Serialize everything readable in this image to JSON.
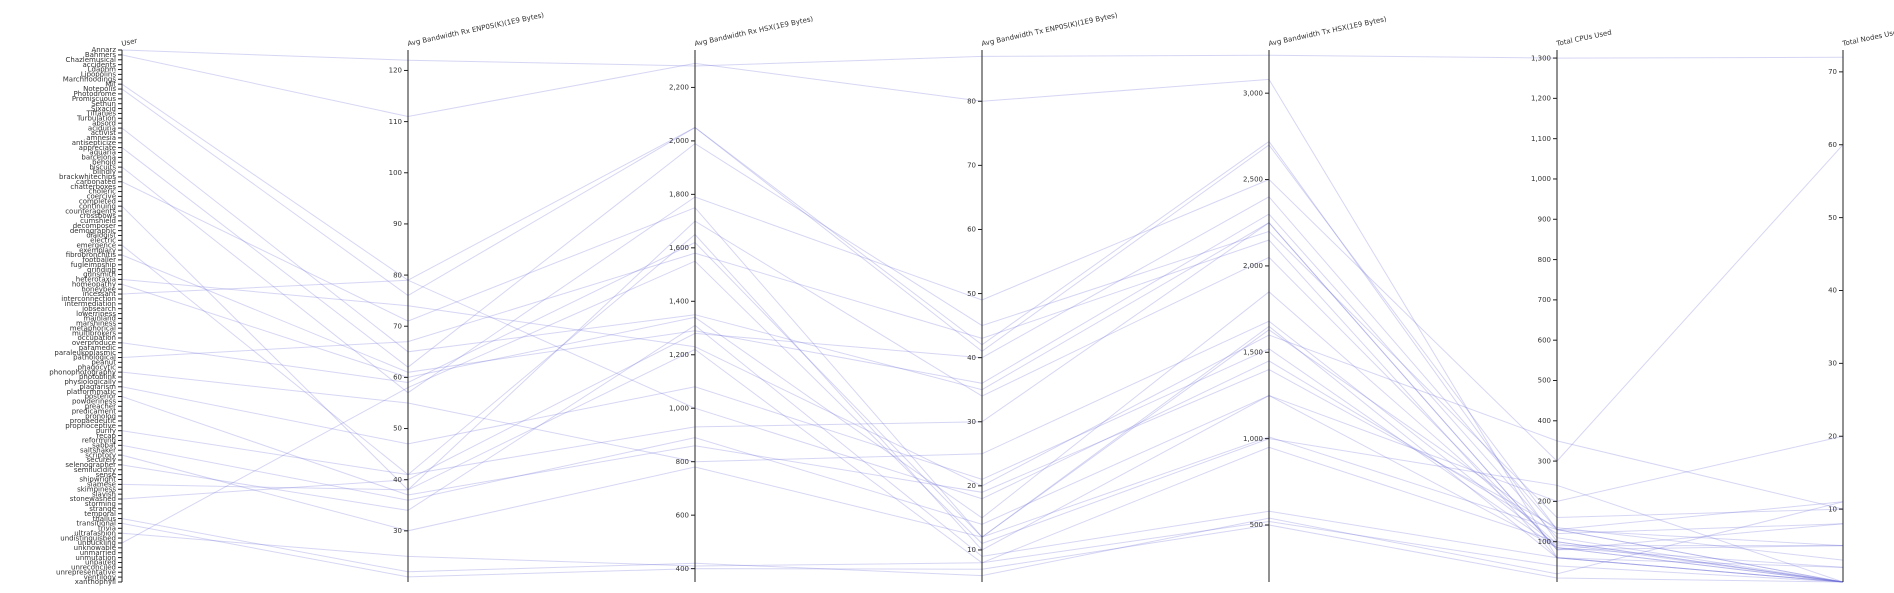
{
  "chart_data": {
    "type": "parallel-coordinates",
    "title": "",
    "line_color": "#6b6bd6",
    "dimensions": [
      {
        "name": "User",
        "type": "categorical",
        "categories": [
          "Annarz",
          "Bahmers",
          "Chazlemusical",
          "accidents",
          "Ldaphm",
          "Lipopolins",
          "Marchhoodings",
          "Mit",
          "Notepolis",
          "Photodrome",
          "Promiscuous",
          "Sethun",
          "Sixacid",
          "Tiffanies",
          "Turbulation",
          "absord",
          "aciduria",
          "activist",
          "amnesia",
          "antisepticize",
          "appreciate",
          "aquaria",
          "barcelona",
          "behold",
          "biscuits",
          "blindly",
          "brackwhitechips",
          "carbonated",
          "chatterboxes",
          "choleric",
          "coercive",
          "completed",
          "continuing",
          "counteragents",
          "crossbows",
          "cumshield",
          "decomposer",
          "demographic",
          "dialogist",
          "electric",
          "emergence",
          "exemplary",
          "fibrobronchitis",
          "footballer",
          "fugleimpship",
          "grinding",
          "gunsmith",
          "heterotaxia",
          "homeopathy",
          "honeybee",
          "incessant",
          "interconnection",
          "intermediation",
          "jobsearch",
          "lowerriness",
          "mainland",
          "marshiness",
          "metaphorical",
          "multibrokers",
          "occupation",
          "overproduce",
          "paramedic",
          "paraleukoplasmic",
          "pathological",
          "peanut",
          "phagocytic",
          "phonophotography",
          "photoblink",
          "physiologically",
          "plagiarism",
          "platformmatic",
          "posterior",
          "powderiness",
          "preacher",
          "predicament",
          "pronolog",
          "propaedeutic",
          "proprioceptive",
          "purify",
          "recap",
          "reforming",
          "sabbat",
          "saltshaker",
          "scriptory",
          "securely",
          "selenographer",
          "semilucidity",
          "sense",
          "shipwright",
          "siamese",
          "skimpiness",
          "slavish",
          "stonewashed",
          "storming",
          "strange",
          "temporal",
          "thallus",
          "transitional",
          "trivia",
          "ultrafashion",
          "undistinguished",
          "unbuckling",
          "unknowable",
          "unmarried",
          "unmutation",
          "unpaired",
          "unreconciled",
          "unrepresentative",
          "ventilogy",
          "xanthophyll"
        ]
      },
      {
        "name": "Avg Bandwidth Rx ENP0S(K)(1E9 Bytes)",
        "type": "numeric",
        "domain": [
          20,
          124
        ],
        "ticks": [
          30,
          40,
          50,
          60,
          70,
          80,
          90,
          100,
          110,
          120
        ]
      },
      {
        "name": "Avg Bandwidth Rx HSX(1E9 Bytes)",
        "type": "numeric",
        "domain": [
          350,
          2340
        ],
        "ticks": [
          400,
          600,
          800,
          1000,
          1200,
          1400,
          1600,
          1800,
          2000,
          2200
        ]
      },
      {
        "name": "Avg Bandwidth Tx ENP0S(K)(1E9 Bytes)",
        "type": "numeric",
        "domain": [
          5,
          88
        ],
        "ticks": [
          10,
          20,
          30,
          40,
          50,
          60,
          70,
          80
        ]
      },
      {
        "name": "Avg Bandwidth Tx HSX(1E9 Bytes)",
        "type": "numeric",
        "domain": [
          170,
          3250
        ],
        "ticks": [
          500,
          1000,
          1500,
          2000,
          2500,
          3000
        ]
      },
      {
        "name": "Total CPUs Used",
        "type": "numeric",
        "domain": [
          0,
          1320
        ],
        "ticks": [
          100,
          200,
          300,
          400,
          500,
          600,
          700,
          800,
          900,
          1000,
          1100,
          1200,
          1300
        ]
      },
      {
        "name": "Total Nodes Used",
        "type": "numeric",
        "domain": [
          0,
          73
        ],
        "ticks": [
          10,
          20,
          30,
          40,
          50,
          60,
          70
        ]
      }
    ],
    "records": [
      [
        "Annarz",
        122,
        2280,
        87,
        3220,
        1300,
        72
      ],
      [
        "Bahmers",
        111,
        2290,
        80,
        3080,
        60,
        2
      ],
      [
        "Notepolis",
        76,
        2050,
        41,
        2700,
        130,
        0
      ],
      [
        "Mit",
        79,
        2050,
        42,
        2720,
        100,
        0
      ],
      [
        "aciduria",
        65,
        1350,
        35,
        2250,
        80,
        5
      ],
      [
        "appreciate",
        62,
        1990,
        45,
        2200,
        160,
        10
      ],
      [
        "biscuits",
        57,
        1790,
        49,
        2500,
        300,
        60
      ],
      [
        "carbonated",
        71,
        1750,
        12,
        1630,
        130,
        5
      ],
      [
        "continuing",
        38,
        1700,
        34,
        2050,
        85,
        2
      ],
      [
        "emergence",
        41,
        1650,
        10,
        1250,
        200,
        20
      ],
      [
        "fibrobronchitis",
        61,
        1290,
        36,
        2300,
        110,
        0
      ],
      [
        "heterotaxia",
        74,
        1230,
        20,
        1600,
        350,
        10
      ],
      [
        "homeopathy",
        60,
        1340,
        15,
        1850,
        95,
        0
      ],
      [
        "incessant",
        79,
        1000,
        18,
        1450,
        120,
        8
      ],
      [
        "overproduce",
        59,
        1620,
        12,
        1010,
        130,
        11
      ],
      [
        "pathological",
        67,
        1580,
        43,
        2150,
        60,
        0
      ],
      [
        "phonophotography",
        55,
        800,
        25,
        1680,
        90,
        5
      ],
      [
        "plagiarism",
        47,
        1080,
        21,
        1520,
        85,
        0
      ],
      [
        "posterior",
        37,
        860,
        19,
        1400,
        135,
        3
      ],
      [
        "purify",
        41,
        930,
        30,
        2250,
        80,
        8
      ],
      [
        "sabbat",
        36,
        890,
        14,
        1250,
        85,
        0
      ],
      [
        "scriptory",
        30,
        780,
        12,
        1650,
        60,
        0
      ],
      [
        "selenographer",
        34,
        1310,
        9,
        580,
        60,
        0
      ],
      [
        "siamese",
        38,
        1220,
        8,
        950,
        100,
        0
      ],
      [
        "stonewashed",
        40,
        1280,
        40,
        2400,
        130,
        0
      ],
      [
        "thallus",
        22,
        420,
        6,
        540,
        20,
        11
      ],
      [
        "transitional",
        21,
        400,
        7,
        500,
        10,
        0
      ],
      [
        "ultrafashion",
        25,
        410,
        8,
        520,
        40,
        0
      ],
      [
        "unbuckling",
        58,
        1550,
        11,
        1000,
        240,
        0
      ]
    ]
  }
}
